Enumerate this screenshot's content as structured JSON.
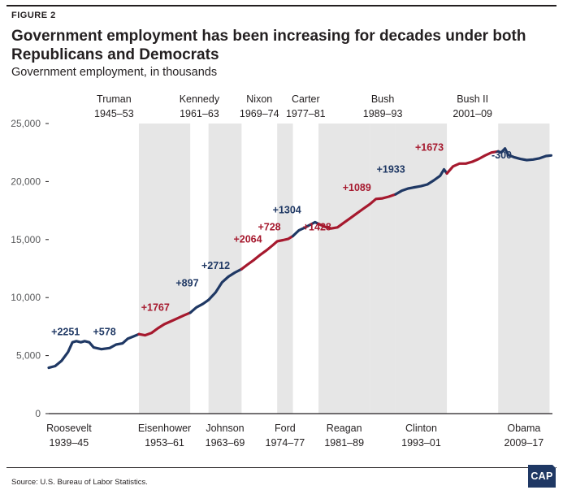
{
  "figure_label": "FIGURE 2",
  "title": "Government employment has been increasing for decades under both Republicans and Democrats",
  "subtitle": "Government employment, in thousands",
  "source": "Source: U.S. Bureau of Labor Statistics.",
  "logo_text": "CAP",
  "colors": {
    "democrat": "#1f3864",
    "republican": "#a6192e",
    "shading": "#e6e6e6",
    "axis": "#231f20",
    "tick_text": "#58595b"
  },
  "chart_data": {
    "type": "line",
    "title": "Government employment has been increasing for decades under both Republicans and Democrats",
    "ylabel": "Government employment, in thousands",
    "xlim": [
      1939,
      2017.5
    ],
    "ylim": [
      0,
      25000
    ],
    "yticks": [
      {
        "value": 0,
        "label": "0"
      },
      {
        "value": 5000,
        "label": "5,000"
      },
      {
        "value": 10000,
        "label": "10,000"
      },
      {
        "value": 15000,
        "label": "15,000"
      },
      {
        "value": 20000,
        "label": "20,000"
      },
      {
        "value": 25000,
        "label": "25,000"
      }
    ],
    "grid": false,
    "presidencies": [
      {
        "name": "Roosevelt",
        "years": "1939–45",
        "start": 1939.0,
        "end": 1945.3,
        "party": "D",
        "label_pos": "bottom",
        "change": "+2251",
        "shaded": false
      },
      {
        "name": "Truman",
        "years": "1945–53",
        "start": 1945.3,
        "end": 1953.05,
        "party": "D",
        "label_pos": "top",
        "change": "+578",
        "shaded": false
      },
      {
        "name": "Eisenhower",
        "years": "1953–61",
        "start": 1953.05,
        "end": 1961.05,
        "party": "R",
        "label_pos": "bottom",
        "change": "+1767",
        "shaded": true
      },
      {
        "name": "Kennedy",
        "years": "1961–63",
        "start": 1961.05,
        "end": 1963.9,
        "party": "D",
        "label_pos": "top",
        "change": "+897",
        "shaded": false
      },
      {
        "name": "Johnson",
        "years": "1963–69",
        "start": 1963.9,
        "end": 1969.05,
        "party": "D",
        "label_pos": "bottom",
        "change": "+2712",
        "shaded": true
      },
      {
        "name": "Nixon",
        "years": "1969–74",
        "start": 1969.05,
        "end": 1974.6,
        "party": "R",
        "label_pos": "top",
        "change": "+2064",
        "shaded": false
      },
      {
        "name": "Ford",
        "years": "1974–77",
        "start": 1974.6,
        "end": 1977.05,
        "party": "R",
        "label_pos": "bottom",
        "change": "+728",
        "shaded": true
      },
      {
        "name": "Carter",
        "years": "1977–81",
        "start": 1977.05,
        "end": 1981.05,
        "party": "D",
        "label_pos": "top",
        "change": "+1304",
        "shaded": false
      },
      {
        "name": "Reagan",
        "years": "1981–89",
        "start": 1981.05,
        "end": 1989.05,
        "party": "R",
        "label_pos": "bottom",
        "change": "+1428",
        "shaded": true
      },
      {
        "name": "Bush",
        "years": "1989–93",
        "start": 1989.05,
        "end": 1993.05,
        "party": "R",
        "label_pos": "top",
        "change": "+1089",
        "shaded": true
      },
      {
        "name": "Clinton",
        "years": "1993–01",
        "start": 1993.05,
        "end": 2001.05,
        "party": "D",
        "label_pos": "bottom",
        "change": "+1933",
        "shaded": true
      },
      {
        "name": "Bush II",
        "years": "2001–09",
        "start": 2001.05,
        "end": 2009.05,
        "party": "R",
        "label_pos": "top",
        "change": "+1673",
        "shaded": false
      },
      {
        "name": "Obama",
        "years": "2009–17",
        "start": 2009.05,
        "end": 2017.05,
        "party": "D",
        "label_pos": "bottom",
        "change": "-300",
        "shaded": true
      }
    ],
    "change_labels": [
      {
        "text": "+2251",
        "party": "D",
        "x": 1939.4,
        "y": 6750
      },
      {
        "text": "+578",
        "party": "D",
        "x": 1945.9,
        "y": 6750
      },
      {
        "text": "+1767",
        "party": "R",
        "x": 1953.4,
        "y": 8850
      },
      {
        "text": "+897",
        "party": "D",
        "x": 1958.8,
        "y": 10950
      },
      {
        "text": "+2712",
        "party": "D",
        "x": 1962.8,
        "y": 12450
      },
      {
        "text": "+2064",
        "party": "R",
        "x": 1967.8,
        "y": 14750
      },
      {
        "text": "+728",
        "party": "R",
        "x": 1971.6,
        "y": 15800
      },
      {
        "text": "+1304",
        "party": "D",
        "x": 1973.9,
        "y": 17250
      },
      {
        "text": "+1428",
        "party": "R",
        "x": 1978.6,
        "y": 15800
      },
      {
        "text": "+1089",
        "party": "R",
        "x": 1984.8,
        "y": 19200
      },
      {
        "text": "+1933",
        "party": "D",
        "x": 1990.1,
        "y": 20750
      },
      {
        "text": "+1673",
        "party": "R",
        "x": 1996.1,
        "y": 22650
      },
      {
        "text": "-300",
        "party": "D",
        "x": 2008.0,
        "y": 22000
      }
    ],
    "series": [
      {
        "party": "D",
        "points": [
          [
            1939.0,
            3950
          ],
          [
            1940.0,
            4100
          ],
          [
            1941.0,
            4550
          ],
          [
            1942.0,
            5300
          ],
          [
            1942.7,
            6150
          ],
          [
            1943.3,
            6250
          ],
          [
            1944.0,
            6150
          ],
          [
            1944.6,
            6250
          ],
          [
            1945.3,
            6150
          ],
          [
            1946.0,
            5700
          ],
          [
            1947.2,
            5550
          ],
          [
            1948.5,
            5650
          ],
          [
            1949.5,
            5950
          ],
          [
            1950.5,
            6050
          ],
          [
            1951.3,
            6450
          ],
          [
            1952.2,
            6650
          ],
          [
            1953.05,
            6850
          ]
        ]
      },
      {
        "party": "R",
        "points": [
          [
            1953.05,
            6850
          ],
          [
            1954.0,
            6750
          ],
          [
            1955.0,
            6950
          ],
          [
            1956.0,
            7350
          ],
          [
            1957.0,
            7700
          ],
          [
            1958.0,
            7950
          ],
          [
            1959.0,
            8200
          ],
          [
            1960.0,
            8450
          ],
          [
            1961.05,
            8700
          ]
        ]
      },
      {
        "party": "D",
        "points": [
          [
            1961.05,
            8700
          ],
          [
            1962.0,
            9150
          ],
          [
            1963.0,
            9450
          ],
          [
            1963.9,
            9800
          ],
          [
            1965.0,
            10450
          ],
          [
            1966.0,
            11300
          ],
          [
            1967.0,
            11800
          ],
          [
            1968.0,
            12150
          ],
          [
            1969.05,
            12450
          ]
        ]
      },
      {
        "party": "R",
        "points": [
          [
            1969.05,
            12450
          ],
          [
            1970.0,
            12850
          ],
          [
            1971.0,
            13250
          ],
          [
            1972.0,
            13700
          ],
          [
            1973.0,
            14100
          ],
          [
            1974.0,
            14550
          ],
          [
            1974.6,
            14850
          ],
          [
            1975.5,
            14950
          ],
          [
            1976.3,
            15050
          ],
          [
            1977.05,
            15300
          ]
        ]
      },
      {
        "party": "D",
        "points": [
          [
            1977.05,
            15300
          ],
          [
            1978.0,
            15800
          ],
          [
            1979.0,
            16050
          ],
          [
            1980.0,
            16350
          ],
          [
            1980.5,
            16500
          ],
          [
            1981.05,
            16350
          ]
        ]
      },
      {
        "party": "R",
        "points": [
          [
            1981.05,
            16350
          ],
          [
            1982.0,
            16100
          ],
          [
            1983.0,
            15950
          ],
          [
            1984.0,
            16050
          ],
          [
            1985.0,
            16450
          ],
          [
            1986.0,
            16850
          ],
          [
            1987.0,
            17250
          ],
          [
            1988.0,
            17650
          ],
          [
            1989.05,
            18050
          ],
          [
            1990.0,
            18500
          ],
          [
            1991.0,
            18550
          ],
          [
            1992.0,
            18700
          ],
          [
            1993.05,
            18900
          ]
        ]
      },
      {
        "party": "D",
        "points": [
          [
            1993.05,
            18900
          ],
          [
            1994.0,
            19200
          ],
          [
            1995.0,
            19400
          ],
          [
            1996.0,
            19500
          ],
          [
            1997.0,
            19600
          ],
          [
            1998.0,
            19750
          ],
          [
            1999.0,
            20100
          ],
          [
            2000.0,
            20500
          ],
          [
            2000.6,
            21050
          ],
          [
            2001.05,
            20700
          ]
        ]
      },
      {
        "party": "R",
        "points": [
          [
            2001.05,
            20700
          ],
          [
            2002.0,
            21300
          ],
          [
            2003.0,
            21550
          ],
          [
            2004.0,
            21550
          ],
          [
            2005.0,
            21700
          ],
          [
            2006.0,
            21950
          ],
          [
            2007.0,
            22250
          ],
          [
            2008.0,
            22500
          ],
          [
            2009.05,
            22600
          ]
        ]
      },
      {
        "party": "D",
        "points": [
          [
            2009.05,
            22600
          ],
          [
            2009.5,
            22500
          ],
          [
            2010.1,
            22850
          ],
          [
            2010.6,
            22300
          ],
          [
            2011.5,
            22100
          ],
          [
            2012.5,
            21950
          ],
          [
            2013.5,
            21850
          ],
          [
            2014.5,
            21900
          ],
          [
            2015.5,
            22000
          ],
          [
            2016.5,
            22200
          ],
          [
            2017.3,
            22250
          ]
        ]
      }
    ]
  }
}
